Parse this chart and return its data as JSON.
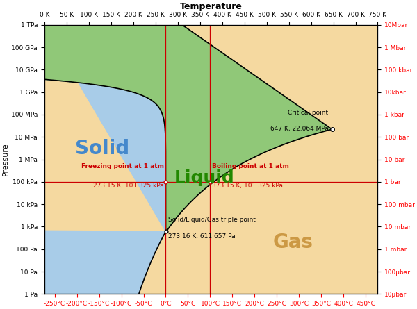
{
  "title": "Temperature",
  "ylabel_left": "Pressure",
  "xlim_K": [
    0,
    750
  ],
  "ylim_Pa_log": [
    1,
    1000000000000.0
  ],
  "top_K_ticks": [
    0,
    50,
    100,
    150,
    200,
    250,
    300,
    350,
    400,
    450,
    500,
    550,
    600,
    650,
    700,
    750
  ],
  "bottom_C_ticks": [
    -250,
    -200,
    -150,
    -100,
    -50,
    0,
    50,
    100,
    150,
    200,
    250,
    300,
    350,
    400,
    450
  ],
  "left_Pa_ticks_labels": [
    "1 Pa",
    "10 Pa",
    "100 Pa",
    "1 kPa",
    "10 kPa",
    "100 kPa",
    "1 MPa",
    "10 MPa",
    "100 MPa",
    "1 GPa",
    "10 GPa",
    "100 GPa",
    "1 TPa"
  ],
  "left_Pa_ticks_vals": [
    1,
    10,
    100,
    1000,
    10000,
    100000,
    1000000,
    10000000,
    100000000,
    1000000000,
    10000000000,
    100000000000,
    1000000000000
  ],
  "right_bar_ticks_labels": [
    "10μbar",
    "100μbar",
    "1 mbar",
    "10 mbar",
    "100 mbar",
    "1 bar",
    "10 bar",
    "100 bar",
    "1 kbar",
    "10kbar",
    "100 kbar",
    "1 Mbar",
    "10Mbar"
  ],
  "right_bar_ticks_vals": [
    1,
    10,
    100,
    1000,
    10000,
    100000,
    1000000,
    10000000,
    100000000,
    1000000000,
    10000000000,
    100000000000,
    1000000000000
  ],
  "solid_color": "#a8cce8",
  "gas_color": "#f5d9a0",
  "liquid_color": "#90c878",
  "triple_point_K": 273.16,
  "triple_point_Pa": 611.657,
  "critical_point_K": 647,
  "critical_point_Pa": 22064000,
  "freezing_point_K": 273.15,
  "boiling_point_K": 373.15,
  "atm_Pa": 101325,
  "red_line_color": "#cc0000",
  "label_solid_color": "#4488cc",
  "label_liquid_color": "#228800",
  "label_gas_color": "#cc9944",
  "figsize": [
    6.0,
    4.45
  ],
  "dpi": 100
}
